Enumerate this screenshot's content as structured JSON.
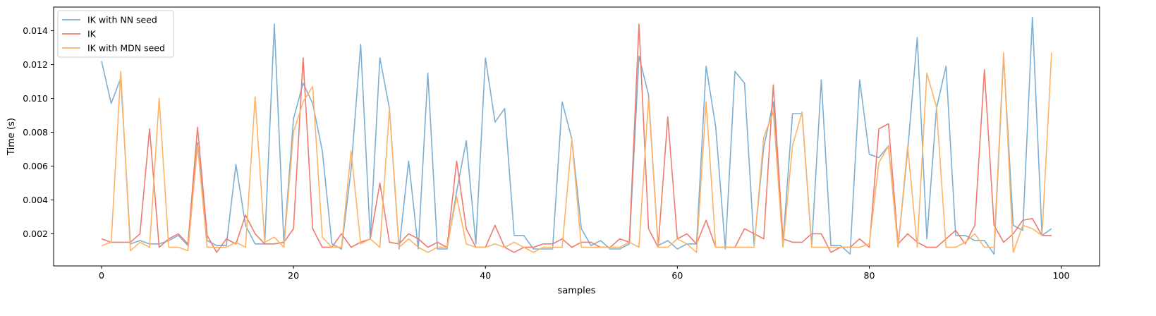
{
  "chart_data": {
    "type": "line",
    "title": "",
    "xlabel": "samples",
    "ylabel": "Time (s)",
    "xlim": [
      -5,
      104
    ],
    "ylim": [
      0.0001,
      0.0154
    ],
    "x_ticks": [
      0,
      20,
      40,
      60,
      80,
      100
    ],
    "y_ticks": [
      0.002,
      0.004,
      0.006,
      0.008,
      0.01,
      0.012,
      0.014
    ],
    "y_tick_labels": [
      "0.002",
      "0.004",
      "0.006",
      "0.008",
      "0.010",
      "0.012",
      "0.014"
    ],
    "grid": false,
    "legend_position": "top-left",
    "x": [
      0,
      1,
      2,
      3,
      4,
      5,
      6,
      7,
      8,
      9,
      10,
      11,
      12,
      13,
      14,
      15,
      16,
      17,
      18,
      19,
      20,
      21,
      22,
      23,
      24,
      25,
      26,
      27,
      28,
      29,
      30,
      31,
      32,
      33,
      34,
      35,
      36,
      37,
      38,
      39,
      40,
      41,
      42,
      43,
      44,
      45,
      46,
      47,
      48,
      49,
      50,
      51,
      52,
      53,
      54,
      55,
      56,
      57,
      58,
      59,
      60,
      61,
      62,
      63,
      64,
      65,
      66,
      67,
      68,
      69,
      70,
      71,
      72,
      73,
      74,
      75,
      76,
      77,
      78,
      79,
      80,
      81,
      82,
      83,
      84,
      85,
      86,
      87,
      88,
      89,
      90,
      91,
      92,
      93,
      94,
      95,
      96,
      97,
      98,
      99
    ],
    "series": [
      {
        "name": "IK with NN seed",
        "color": "#7bafd4",
        "values": [
          0.0122,
          0.0097,
          0.0112,
          0.0014,
          0.0016,
          0.0014,
          0.0014,
          0.0016,
          0.0019,
          0.0013,
          0.0074,
          0.0016,
          0.0013,
          0.0013,
          0.0061,
          0.0025,
          0.0014,
          0.0014,
          0.0144,
          0.0014,
          0.0088,
          0.0109,
          0.0097,
          0.0069,
          0.0014,
          0.0011,
          0.0058,
          0.0132,
          0.0017,
          0.0124,
          0.0094,
          0.0011,
          0.0063,
          0.0011,
          0.0115,
          0.0011,
          0.0011,
          0.0045,
          0.0075,
          0.0014,
          0.0124,
          0.0086,
          0.0094,
          0.0019,
          0.0019,
          0.0011,
          0.0011,
          0.0011,
          0.0098,
          0.0076,
          0.0023,
          0.0013,
          0.0016,
          0.0011,
          0.0011,
          0.0014,
          0.0125,
          0.0102,
          0.0013,
          0.0016,
          0.0011,
          0.0014,
          0.0014,
          0.0119,
          0.0083,
          0.0011,
          0.0116,
          0.0109,
          0.0013,
          0.0071,
          0.0098,
          0.0014,
          0.0091,
          0.0091,
          0.0013,
          0.0111,
          0.0013,
          0.0013,
          0.0008,
          0.0111,
          0.0067,
          0.0065,
          0.0072,
          0.0012,
          0.0069,
          0.0136,
          0.0017,
          0.0094,
          0.0119,
          0.0019,
          0.0019,
          0.0016,
          0.0016,
          0.0008,
          0.0125,
          0.0025,
          0.0022,
          0.0148,
          0.0019,
          0.0023
        ]
      },
      {
        "name": "IK",
        "color": "#f07a6c",
        "values": [
          0.0017,
          0.0015,
          0.0015,
          0.0015,
          0.002,
          0.0082,
          0.0012,
          0.0017,
          0.002,
          0.0014,
          0.0083,
          0.0019,
          0.0009,
          0.0017,
          0.0014,
          0.0031,
          0.002,
          0.0014,
          0.0014,
          0.0015,
          0.0023,
          0.0124,
          0.0023,
          0.0012,
          0.0012,
          0.002,
          0.0012,
          0.0015,
          0.0017,
          0.005,
          0.0015,
          0.0014,
          0.002,
          0.0017,
          0.0012,
          0.0015,
          0.0012,
          0.0063,
          0.0023,
          0.0012,
          0.0012,
          0.0025,
          0.0012,
          0.0009,
          0.0012,
          0.0012,
          0.0014,
          0.0014,
          0.0017,
          0.0012,
          0.0015,
          0.0015,
          0.0012,
          0.0012,
          0.0017,
          0.0015,
          0.0144,
          0.0023,
          0.0012,
          0.0089,
          0.0017,
          0.002,
          0.0014,
          0.0028,
          0.0012,
          0.0012,
          0.0012,
          0.0023,
          0.002,
          0.0017,
          0.0108,
          0.0017,
          0.0015,
          0.0015,
          0.002,
          0.002,
          0.0009,
          0.0012,
          0.0012,
          0.0017,
          0.0012,
          0.0082,
          0.0085,
          0.0014,
          0.002,
          0.0015,
          0.0012,
          0.0012,
          0.0017,
          0.0022,
          0.0014,
          0.0025,
          0.0117,
          0.0025,
          0.0015,
          0.002,
          0.0028,
          0.0029,
          0.0019,
          0.0019
        ]
      },
      {
        "name": "IK with MDN seed",
        "color": "#fdb366",
        "values": [
          0.0013,
          0.0015,
          0.0116,
          0.001,
          0.0015,
          0.0012,
          0.01,
          0.0012,
          0.0012,
          0.001,
          0.0072,
          0.0012,
          0.0012,
          0.0012,
          0.0015,
          0.0012,
          0.0101,
          0.0015,
          0.0018,
          0.0012,
          0.008,
          0.0098,
          0.0107,
          0.0018,
          0.0012,
          0.0012,
          0.0069,
          0.0014,
          0.0017,
          0.0012,
          0.0094,
          0.0012,
          0.0017,
          0.0012,
          0.0009,
          0.0012,
          0.0012,
          0.0042,
          0.0014,
          0.0012,
          0.0012,
          0.0014,
          0.0012,
          0.0015,
          0.0012,
          0.0009,
          0.0012,
          0.0012,
          0.0012,
          0.0076,
          0.0012,
          0.0012,
          0.0012,
          0.0012,
          0.0012,
          0.0015,
          0.0012,
          0.01,
          0.0012,
          0.0012,
          0.0017,
          0.0014,
          0.0009,
          0.0098,
          0.0012,
          0.0012,
          0.0012,
          0.0012,
          0.0012,
          0.0077,
          0.0092,
          0.0012,
          0.0072,
          0.0092,
          0.0012,
          0.0012,
          0.0012,
          0.0012,
          0.0012,
          0.0012,
          0.0014,
          0.0062,
          0.0072,
          0.0012,
          0.0072,
          0.0012,
          0.0115,
          0.0095,
          0.0012,
          0.0012,
          0.0015,
          0.002,
          0.0012,
          0.0012,
          0.0127,
          0.0009,
          0.0025,
          0.0023,
          0.0019,
          0.0127
        ]
      }
    ]
  }
}
